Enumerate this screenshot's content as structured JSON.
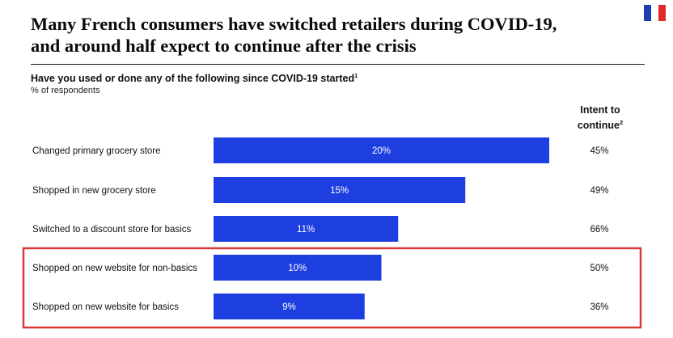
{
  "header": {
    "title_line1": "Many French consumers have switched retailers during COVID-19,",
    "title_line2": "and around half expect to continue after the crisis",
    "subtitle": "Have you used or done any of the following since COVID-19 started",
    "subtitle_footnote": "1",
    "unit": "% of respondents",
    "flag_colors": [
      "#1f3fb0",
      "#ffffff",
      "#e0292b"
    ]
  },
  "intent_header": {
    "line1": "Intent to",
    "line2": "continue",
    "footnote": "2"
  },
  "colors": {
    "bar": "#1e3fe0",
    "highlight_border": "#d93a3a"
  },
  "chart_data": {
    "type": "bar",
    "orientation": "horizontal",
    "title": "Have you used or done any of the following since COVID-19 started",
    "xlabel": "",
    "ylabel": "% of respondents",
    "xlim": [
      0,
      20
    ],
    "categories": [
      "Changed primary grocery store",
      "Shopped in new grocery store",
      "Switched to a discount store for basics",
      "Shopped on new website for non-basics",
      "Shopped on new website for basics"
    ],
    "values": [
      20,
      15,
      11,
      10,
      9
    ],
    "value_labels": [
      "20%",
      "15%",
      "11%",
      "10%",
      "9%"
    ],
    "intent_to_continue": [
      "45%",
      "49%",
      "66%",
      "50%",
      "36%"
    ],
    "highlighted_categories": [
      "Shopped on new website for non-basics",
      "Shopped on new website for basics"
    ]
  }
}
